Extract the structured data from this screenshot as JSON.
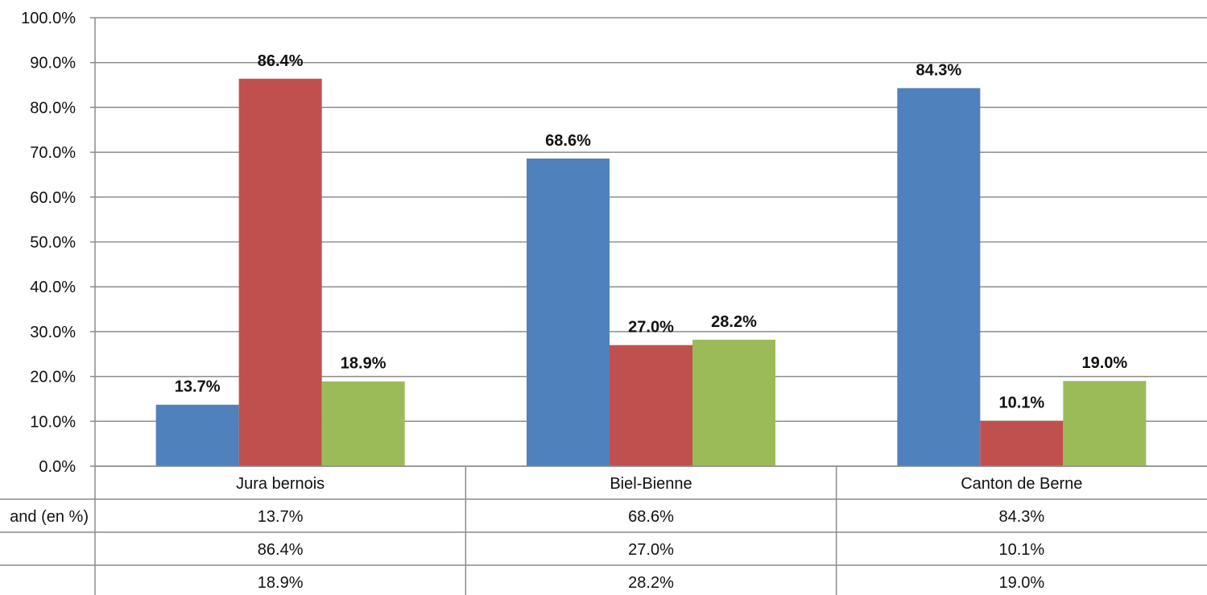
{
  "chart_data": {
    "type": "bar",
    "title": "",
    "xlabel": "",
    "ylabel": "",
    "ylim": [
      0,
      100
    ],
    "y_ticks": [
      "0.0%",
      "10.0%",
      "20.0%",
      "30.0%",
      "40.0%",
      "50.0%",
      "60.0%",
      "70.0%",
      "80.0%",
      "90.0%",
      "100.0%"
    ],
    "grid": true,
    "categories": [
      "Jura bernois",
      "Biel-Bienne",
      "Canton de Berne"
    ],
    "series": [
      {
        "row_label": "and (en %)",
        "color": "#4f81bd",
        "values": [
          13.7,
          68.6,
          84.3
        ],
        "labels": [
          "13.7%",
          "68.6%",
          "84.3%"
        ]
      },
      {
        "row_label": "",
        "color": "#c0504d",
        "values": [
          86.4,
          27.0,
          10.1
        ],
        "labels": [
          "86.4%",
          "27.0%",
          "10.1%"
        ]
      },
      {
        "row_label": "",
        "color": "#9bbb59",
        "values": [
          18.9,
          28.2,
          19.0
        ],
        "labels": [
          "18.9%",
          "28.2%",
          "19.0%"
        ]
      }
    ],
    "data_table": true
  }
}
